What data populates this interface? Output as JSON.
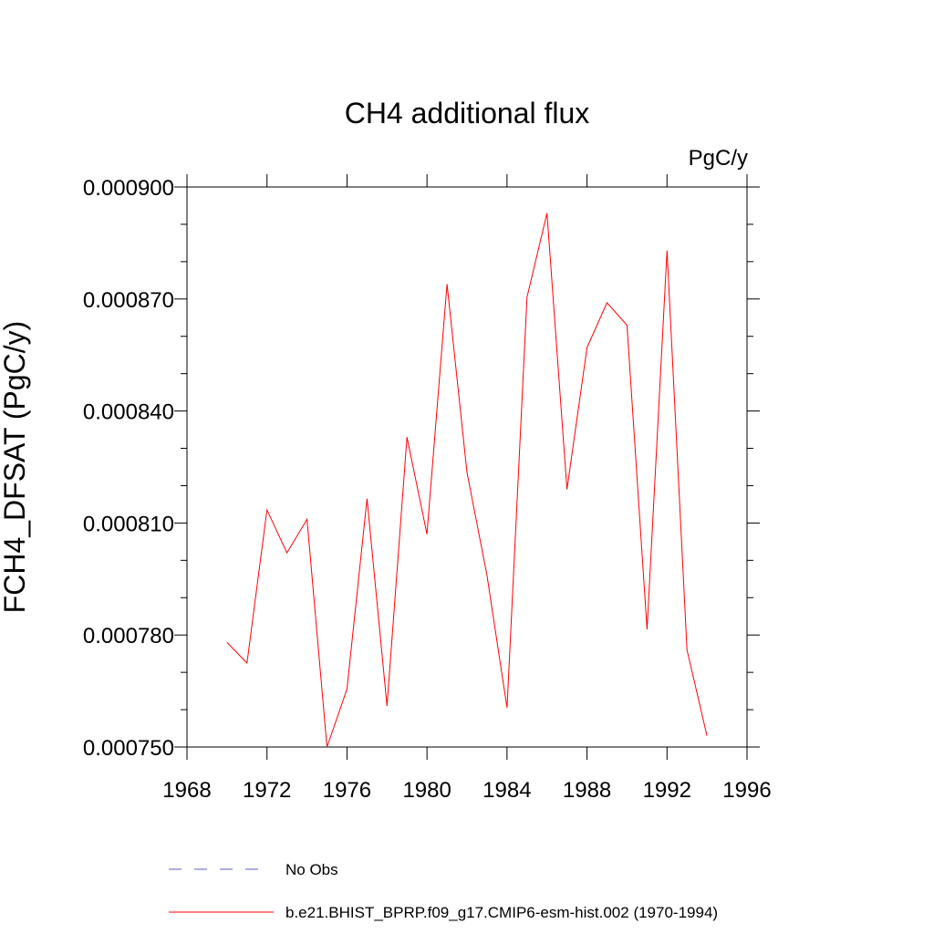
{
  "chart_data": {
    "type": "line",
    "title": "CH4 additional flux",
    "units_label": "PgC/y",
    "xlabel": "",
    "ylabel": "FCH4_DFSAT  (PgC/y)",
    "xlim": [
      1968,
      1996
    ],
    "ylim": [
      0.00075,
      0.0009
    ],
    "x_ticks": [
      1968,
      1972,
      1976,
      1980,
      1984,
      1988,
      1992,
      1996
    ],
    "x_tick_labels": [
      "1968",
      "1972",
      "1976",
      "1980",
      "1984",
      "1988",
      "1992",
      "1996"
    ],
    "y_ticks": [
      0.00075,
      0.00078,
      0.00081,
      0.00084,
      0.00087,
      0.0009
    ],
    "y_tick_labels": [
      "0.000750",
      "0.000780",
      "0.000810",
      "0.000840",
      "0.000870",
      "0.000900"
    ],
    "grid": false,
    "legend_placement": "bottom",
    "series": [
      {
        "name": "No Obs",
        "color": "#5a5acd",
        "style": "dashed",
        "x": [],
        "y": []
      },
      {
        "name": "b.e21.BHIST_BPRP.f09_g17.CMIP6-esm-hist.002 (1970-1994)",
        "color": "#ff0000",
        "style": "solid",
        "x": [
          1970,
          1971,
          1972,
          1973,
          1974,
          1975,
          1976,
          1977,
          1978,
          1979,
          1980,
          1981,
          1982,
          1983,
          1984,
          1985,
          1986,
          1987,
          1988,
          1989,
          1990,
          1991,
          1992,
          1993,
          1994
        ],
        "y": [
          0.000778,
          0.0007725,
          0.0008135,
          0.000802,
          0.000811,
          0.00075,
          0.0007655,
          0.0008165,
          0.000761,
          0.000833,
          0.000807,
          0.000874,
          0.0008235,
          0.000796,
          0.0007605,
          0.0008705,
          0.000893,
          0.000819,
          0.000857,
          0.000869,
          0.000863,
          0.0007815,
          0.000883,
          0.000776,
          0.000753
        ]
      }
    ]
  }
}
